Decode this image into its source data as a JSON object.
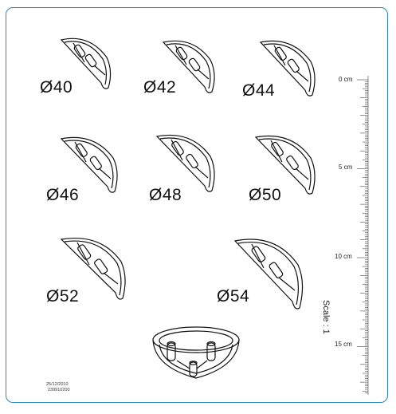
{
  "parts": [
    {
      "id": "d40",
      "label": "Ø40"
    },
    {
      "id": "d42",
      "label": "Ø42"
    },
    {
      "id": "d44",
      "label": "Ø44"
    },
    {
      "id": "d46",
      "label": "Ø46"
    },
    {
      "id": "d48",
      "label": "Ø48"
    },
    {
      "id": "d50",
      "label": "Ø50"
    },
    {
      "id": "d52",
      "label": "Ø52"
    },
    {
      "id": "d54",
      "label": "Ø54"
    }
  ],
  "ruler": {
    "ticks": [
      "0 cm",
      "5 cm",
      "10 cm",
      "15 cm"
    ],
    "scale_label": "Scale : 1"
  },
  "footer": {
    "date": "25/12/2010",
    "code": "239910200"
  }
}
